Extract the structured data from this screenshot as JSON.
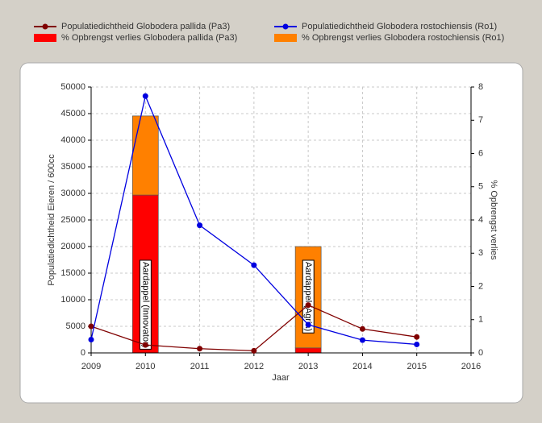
{
  "chart_data": {
    "type": "combo",
    "x": [
      2009,
      2010,
      2011,
      2012,
      2013,
      2014,
      2015
    ],
    "series": [
      {
        "name": "Populatiedichtheid Globodera pallida (Pa3)",
        "type": "line",
        "color": "#800000",
        "values": [
          5000,
          1500,
          800,
          400,
          9000,
          4500,
          3000
        ]
      },
      {
        "name": "Populatiedichtheid Globodera rostochiensis (Ro1)",
        "type": "line",
        "color": "#0000e0",
        "values": [
          2500,
          48300,
          24000,
          16500,
          5300,
          2400,
          1600
        ]
      },
      {
        "name": "% Opbrengst verlies Globodera pallida (Pa3)",
        "type": "bar",
        "axis": "y2",
        "color": "#ff0000",
        "values": [
          null,
          4.75,
          null,
          null,
          0.15,
          null,
          null
        ]
      },
      {
        "name": "% Opbrengst verlies Globodera rostochiensis (Ro1)",
        "type": "bar",
        "axis": "y2",
        "color": "#ff8000",
        "values": [
          null,
          2.38,
          null,
          null,
          3.05,
          null,
          null
        ]
      }
    ],
    "annotations": [
      {
        "text": "Aardappel (Innovator)",
        "x": 2010
      },
      {
        "text": "Aardappel (Agria)",
        "x": 2013
      }
    ],
    "xlabel": "Jaar",
    "ylabel": "Populatiedichtheid Eieren / 600cc",
    "y2label": "% Opbrengst verlies",
    "xlim": [
      2009,
      2016
    ],
    "xticks": [
      2009,
      2010,
      2011,
      2012,
      2013,
      2014,
      2015,
      2016
    ],
    "ylim": [
      0,
      50000
    ],
    "yticks": [
      0,
      5000,
      10000,
      15000,
      20000,
      25000,
      30000,
      35000,
      40000,
      45000,
      50000
    ],
    "y2lim": [
      0,
      8
    ],
    "y2ticks": [
      0,
      1,
      2,
      3,
      4,
      5,
      6,
      7,
      8
    ],
    "grid": true
  }
}
